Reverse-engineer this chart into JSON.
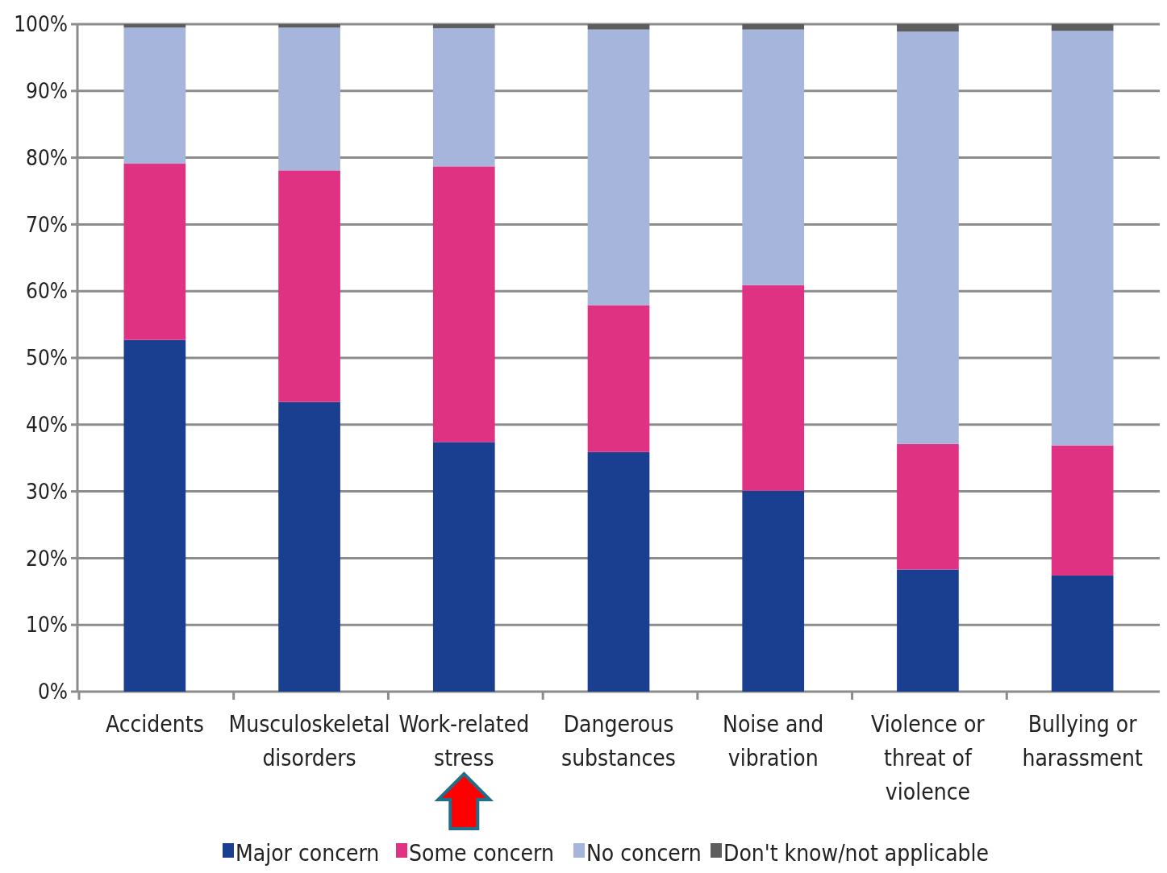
{
  "chart_data": {
    "type": "bar",
    "stacked": true,
    "categories": [
      "Accidents",
      "Musculoskeletal disorders",
      "Work-related stress",
      "Dangerous substances",
      "Noise and vibration",
      "Violence or threat of violence",
      "Bullying or harassment"
    ],
    "series": [
      {
        "name": "Major concern",
        "color": "#1a3f91",
        "values": [
          52.7,
          43.4,
          37.4,
          35.9,
          30.1,
          18.3,
          17.4
        ]
      },
      {
        "name": "Some concern",
        "color": "#e03282",
        "values": [
          26.4,
          34.7,
          41.3,
          22,
          30.8,
          18.8,
          19.5
        ]
      },
      {
        "name": "No concern",
        "color": "#a6b5dc",
        "values": [
          20.4,
          21.4,
          20.7,
          41.3,
          38.3,
          61.8,
          62.1
        ]
      },
      {
        "name": "Don't know/not applicable",
        "color": "#5e5e5e",
        "values": [
          0.5,
          0.5,
          0.6,
          0.8,
          0.8,
          1.1,
          1
        ]
      }
    ],
    "ylim": [
      0,
      100
    ],
    "yticks": [
      {
        "value": 0,
        "label": "0%"
      },
      {
        "value": 10,
        "label": "10%"
      },
      {
        "value": 20,
        "label": "20%"
      },
      {
        "value": 30,
        "label": "30%"
      },
      {
        "value": 40,
        "label": "40%"
      },
      {
        "value": 50,
        "label": "50%"
      },
      {
        "value": 60,
        "label": "60%"
      },
      {
        "value": 70,
        "label": "70%"
      },
      {
        "value": 80,
        "label": "80%"
      },
      {
        "value": 90,
        "label": "90%"
      },
      {
        "value": 100,
        "label": "100%"
      }
    ],
    "grid": "y",
    "legend": "bottom"
  }
}
